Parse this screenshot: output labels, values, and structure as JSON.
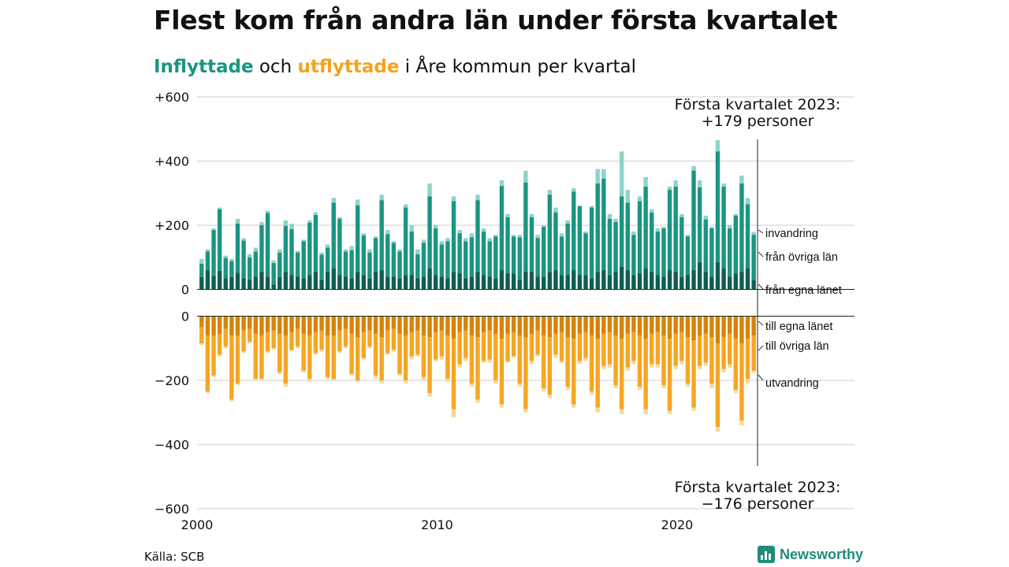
{
  "title": "Flest kom från andra län under första kvartalet",
  "subtitle": {
    "in_word": "Inflyttade",
    "and_word": "och",
    "out_word": "utflyttade",
    "rest": "i Åre kommun per kvartal"
  },
  "source": "Källa: SCB",
  "brand": "Newsworthy",
  "colors": {
    "own_county": "#0e5e52",
    "other_county": "#1a9582",
    "immigration": "#8fd3ca",
    "out_own": "#d68407",
    "out_other": "#f5a623",
    "out_emigration": "#f7d9a0",
    "grid": "#dddddd"
  },
  "chart_data": {
    "type": "bar",
    "stacked": true,
    "x_start": "2000-Q1",
    "x_end": "2023-Q1",
    "xticks": [
      "2000",
      "2010",
      "2020"
    ],
    "xlim": [
      2000,
      2027
    ],
    "ylim": [
      -600,
      600
    ],
    "yticks": [
      "+600",
      "+400",
      "+200",
      "0",
      "0",
      "−200",
      "−400",
      "−600"
    ],
    "grid": true,
    "annotations": {
      "top": [
        "Första kvartalet 2023:",
        "+179 personer"
      ],
      "bottom": [
        "Första kvartalet 2023:",
        "−176 personer"
      ]
    },
    "in_series_labels": [
      "invandring",
      "från övriga län",
      "från egna länet"
    ],
    "out_series_labels": [
      "till egna länet",
      "till övriga län",
      "utvandring"
    ],
    "in_total": [
      95,
      125,
      190,
      255,
      105,
      95,
      220,
      160,
      110,
      130,
      210,
      245,
      90,
      125,
      215,
      205,
      120,
      155,
      215,
      240,
      115,
      140,
      285,
      225,
      125,
      135,
      280,
      175,
      125,
      165,
      295,
      185,
      150,
      125,
      265,
      200,
      125,
      155,
      330,
      200,
      150,
      160,
      290,
      185,
      160,
      175,
      295,
      190,
      160,
      170,
      340,
      235,
      170,
      170,
      370,
      235,
      170,
      200,
      310,
      255,
      175,
      215,
      315,
      260,
      180,
      260,
      375,
      375,
      235,
      220,
      430,
      310,
      180,
      290,
      350,
      250,
      190,
      195,
      320,
      340,
      235,
      170,
      385,
      340,
      230,
      195,
      465,
      330,
      200,
      235,
      355,
      285,
      179
    ],
    "in_other_county": [
      80,
      118,
      185,
      250,
      98,
      88,
      205,
      152,
      100,
      118,
      200,
      238,
      82,
      115,
      198,
      188,
      115,
      150,
      208,
      232,
      108,
      130,
      270,
      220,
      118,
      122,
      262,
      168,
      115,
      160,
      278,
      172,
      145,
      118,
      255,
      180,
      110,
      145,
      290,
      190,
      140,
      150,
      275,
      175,
      150,
      162,
      278,
      180,
      150,
      165,
      322,
      225,
      165,
      162,
      333,
      225,
      160,
      195,
      295,
      240,
      165,
      205,
      305,
      260,
      175,
      255,
      330,
      345,
      220,
      210,
      290,
      270,
      170,
      275,
      320,
      240,
      180,
      190,
      310,
      320,
      225,
      165,
      370,
      318,
      218,
      190,
      430,
      320,
      190,
      230,
      330,
      265,
      170
    ],
    "in_own_county": [
      38,
      60,
      42,
      58,
      35,
      38,
      52,
      35,
      30,
      40,
      55,
      40,
      15,
      38,
      55,
      45,
      40,
      35,
      45,
      55,
      30,
      55,
      65,
      45,
      40,
      35,
      55,
      45,
      35,
      55,
      60,
      40,
      40,
      35,
      45,
      45,
      35,
      40,
      65,
      45,
      40,
      35,
      55,
      50,
      35,
      40,
      55,
      45,
      40,
      35,
      60,
      50,
      50,
      30,
      55,
      55,
      40,
      40,
      55,
      60,
      45,
      45,
      60,
      45,
      45,
      35,
      55,
      60,
      45,
      55,
      70,
      60,
      45,
      50,
      65,
      55,
      45,
      40,
      60,
      55,
      40,
      45,
      60,
      85,
      55,
      40,
      85,
      65,
      40,
      50,
      55,
      65,
      30
    ],
    "out_total": [
      -90,
      -240,
      -190,
      -125,
      -100,
      -265,
      -215,
      -115,
      -85,
      -200,
      -200,
      -115,
      -105,
      -180,
      -220,
      -110,
      -100,
      -175,
      -205,
      -120,
      -110,
      -195,
      -200,
      -115,
      -100,
      -185,
      -205,
      -135,
      -100,
      -195,
      -210,
      -120,
      -110,
      -185,
      -210,
      -135,
      -125,
      -200,
      -250,
      -140,
      -135,
      -205,
      -315,
      -160,
      -140,
      -220,
      -270,
      -145,
      -145,
      -210,
      -285,
      -145,
      -130,
      -220,
      -300,
      -150,
      -125,
      -235,
      -255,
      -130,
      -145,
      -230,
      -285,
      -150,
      -140,
      -245,
      -300,
      -165,
      -160,
      -225,
      -305,
      -170,
      -150,
      -230,
      -305,
      -160,
      -160,
      -225,
      -305,
      -165,
      -150,
      -220,
      -295,
      -165,
      -155,
      -225,
      -360,
      -175,
      -160,
      -240,
      -340,
      -210,
      -176
    ],
    "out_own_and_other": [
      -85,
      -235,
      -185,
      -120,
      -95,
      -260,
      -210,
      -110,
      -80,
      -195,
      -195,
      -110,
      -100,
      -175,
      -210,
      -105,
      -95,
      -170,
      -195,
      -115,
      -105,
      -190,
      -195,
      -110,
      -95,
      -180,
      -200,
      -130,
      -95,
      -185,
      -200,
      -115,
      -105,
      -180,
      -200,
      -125,
      -120,
      -190,
      -240,
      -135,
      -125,
      -195,
      -290,
      -150,
      -130,
      -210,
      -260,
      -140,
      -135,
      -200,
      -275,
      -140,
      -125,
      -210,
      -290,
      -140,
      -120,
      -225,
      -245,
      -120,
      -140,
      -220,
      -275,
      -140,
      -130,
      -235,
      -285,
      -155,
      -150,
      -215,
      -290,
      -160,
      -140,
      -220,
      -290,
      -150,
      -150,
      -215,
      -295,
      -155,
      -140,
      -210,
      -285,
      -155,
      -145,
      -210,
      -345,
      -165,
      -150,
      -230,
      -325,
      -195,
      -170
    ],
    "out_own_county": [
      -35,
      -60,
      -60,
      -55,
      -40,
      -60,
      -60,
      -45,
      -40,
      -55,
      -60,
      -50,
      -45,
      -55,
      -60,
      -50,
      -40,
      -55,
      -60,
      -50,
      -45,
      -60,
      -60,
      -45,
      -40,
      -55,
      -65,
      -50,
      -45,
      -55,
      -65,
      -45,
      -40,
      -55,
      -60,
      -50,
      -45,
      -60,
      -65,
      -50,
      -45,
      -60,
      -70,
      -50,
      -45,
      -60,
      -65,
      -50,
      -45,
      -55,
      -70,
      -55,
      -50,
      -60,
      -65,
      -55,
      -45,
      -60,
      -65,
      -55,
      -50,
      -65,
      -70,
      -55,
      -50,
      -60,
      -70,
      -55,
      -50,
      -60,
      -70,
      -55,
      -50,
      -60,
      -70,
      -55,
      -50,
      -60,
      -70,
      -55,
      -50,
      -65,
      -75,
      -60,
      -55,
      -65,
      -85,
      -65,
      -55,
      -70,
      -85,
      -70,
      -60
    ]
  }
}
